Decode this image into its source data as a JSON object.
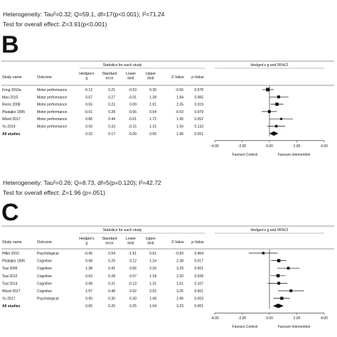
{
  "top_stats": {
    "heterogeneity": "Heterogeneity: Tau²=0.32; Q=59.1, df=17(p<0.001); I²=71.24",
    "overall": "Test for overall effect: Z=3.91(p<0.001)"
  },
  "panel_b": {
    "letter": "B",
    "headers": {
      "study_name": "Study name",
      "outcome": "Outcome",
      "stats_title": "Statistics for each study",
      "g": "Hedges's g",
      "se": "Standard error",
      "lower": "Lower limit",
      "upper": "Upper limit",
      "z": "Z-Value",
      "p": "p-Value",
      "plot_title": "Hedges's g and 95%CI"
    },
    "axis_ticks": [
      "-4.00",
      "-2.00",
      "0.00",
      "2.00",
      "4.00"
    ],
    "favours_left": "Favours Control",
    "favours_right": "Favours Intervention",
    "heterogeneity": "Heterogeneity: Tau²=0.26; Q=8.73, df=5(p=0.120); I²=42.72",
    "overall": "Test for overall effect: Z=1.96 (p=.051)"
  },
  "panel_c": {
    "letter": "C",
    "headers": {
      "study_name": "Study name",
      "outcome": "Outcome",
      "stats_title": "Statistics for each study",
      "g": "Hedges's g",
      "se": "Standard error",
      "lower": "Lower limit",
      "upper": "Upper limit",
      "z": "Z-Value",
      "p": "p-Value",
      "plot_title": "Hedges's g and 95%CI"
    },
    "axis_ticks": [
      "-4.00",
      "-2.00",
      "0.00",
      "2.00",
      "4.00"
    ],
    "favours_left": "Favours Control",
    "favours_right": "Favours Intervention"
  },
  "chart_data": [
    {
      "type": "forest",
      "title": "Hedges's g and 95%CI",
      "xlim": [
        -4,
        4
      ],
      "rows": [
        {
          "study": "Fong 2016a",
          "outcome": "Motor performance",
          "g": "-0.12",
          "se": "0.21",
          "lower": "-0.53",
          "upper": "0.30",
          "z": "-0.56",
          "p": "0.578",
          "gv": -0.12,
          "lv": -0.53,
          "uv": 0.3,
          "weight": 5
        },
        {
          "study": "Mao 2015",
          "outcome": "Motor performance",
          "g": "0.67",
          "se": "0.27",
          "lower": "-0.01",
          "upper": "1.39",
          "z": "1.84",
          "p": "0.065",
          "gv": 0.67,
          "lv": -0.01,
          "uv": 1.39,
          "weight": 4
        },
        {
          "study": "Roms 2008",
          "outcome": "Motor performance",
          "g": "0.55",
          "se": "0.23",
          "lower": "0.09",
          "upper": "1.01",
          "z": "2.35",
          "p": "0.019",
          "gv": 0.55,
          "lv": 0.09,
          "uv": 1.01,
          "weight": 4.5
        },
        {
          "study": "Pbatajko 1995",
          "outcome": "Motor performance",
          "g": "-0.01",
          "se": "0.28",
          "lower": "-0.56",
          "upper": "0.54",
          "z": "-0.03",
          "p": "0.979",
          "gv": -0.01,
          "lv": -0.56,
          "uv": 0.54,
          "weight": 4
        },
        {
          "study": "Wood 2017",
          "outcome": "Motor performance",
          "g": "0.86",
          "se": "0.44",
          "lower": "-0.01",
          "upper": "1.72",
          "z": "1.95",
          "p": "0.052",
          "gv": 0.86,
          "lv": -0.01,
          "uv": 1.72,
          "weight": 3
        },
        {
          "study": "Yu 2019",
          "outcome": "Motor performance",
          "g": "0.50",
          "se": "0.33",
          "lower": "-0.15",
          "upper": "1.15",
          "z": "1.50",
          "p": "0.133",
          "gv": 0.5,
          "lv": -0.15,
          "uv": 1.15,
          "weight": 3.5
        }
      ],
      "summary": {
        "study": "All studies",
        "g": "0.32",
        "se": "0.17",
        "lower": "-0.00",
        "upper": "0.65",
        "z": "1.96",
        "p": "0.051",
        "gv": 0.32,
        "lv": 0.0,
        "uv": 0.65
      },
      "xlabel_left": "Favours Control",
      "xlabel_right": "Favours Intervention"
    },
    {
      "type": "forest",
      "title": "Hedges's g and 95%CI",
      "xlim": [
        -4,
        4
      ],
      "rows": [
        {
          "study": "Hiller 2010",
          "outcome": "Psychological",
          "g": "-0.45",
          "se": "0.54",
          "lower": "-1.51",
          "upper": "0.61",
          "z": "-0.83",
          "p": "0.404",
          "gv": -0.45,
          "lv": -1.51,
          "uv": 0.61,
          "weight": 3.5
        },
        {
          "study": "Pbatajko 1995",
          "outcome": "Cognitive",
          "g": "0.68",
          "se": "0.29",
          "lower": "0.12",
          "upper": "1.24",
          "z": "2.38",
          "p": "0.017",
          "gv": 0.68,
          "lv": 0.12,
          "uv": 1.24,
          "weight": 4.5
        },
        {
          "study": "Tsai 2009",
          "outcome": "Cognitive",
          "g": "1.38",
          "se": "0.42",
          "lower": "0.56",
          "upper": "2.20",
          "z": "3.29",
          "p": "0.001",
          "gv": 1.38,
          "lv": 0.56,
          "uv": 2.2,
          "weight": 3.8
        },
        {
          "study": "Tsai 2012",
          "outcome": "Cognitive",
          "g": "0.63",
          "se": "0.28",
          "lower": "0.07",
          "upper": "1.18",
          "z": "2.20",
          "p": "0.028",
          "gv": 0.63,
          "lv": 0.07,
          "uv": 1.18,
          "weight": 4.5
        },
        {
          "study": "Tsai 2014",
          "outcome": "Cognitive",
          "g": "0.68",
          "se": "0.31",
          "lower": "-0.13",
          "upper": "1.31",
          "z": "1.61",
          "p": "0.107",
          "gv": 0.68,
          "lv": -0.13,
          "uv": 1.31,
          "weight": 4
        },
        {
          "study": "Wood 2017",
          "outcome": "Cognitive",
          "g": "1.57",
          "se": "0.48",
          "lower": "0.62",
          "upper": "2.52",
          "z": "3.25",
          "p": "0.001",
          "gv": 1.57,
          "lv": 0.62,
          "uv": 2.52,
          "weight": 3.8
        },
        {
          "study": "Yu 2017",
          "outcome": "Psychological",
          "g": "0.90",
          "se": "0.30",
          "lower": "0.30",
          "upper": "1.49",
          "z": "2.96",
          "p": "0.003",
          "gv": 0.9,
          "lv": 0.3,
          "uv": 1.49,
          "weight": 4.3
        }
      ],
      "summary": {
        "study": "All studies",
        "g": "0.65",
        "se": "0.20",
        "lower": "0.25",
        "upper": "1.04",
        "z": "3.23",
        "p": "0.001",
        "gv": 0.65,
        "lv": 0.25,
        "uv": 1.04
      },
      "xlabel_left": "Favours Control",
      "xlabel_right": "Favours Intervention"
    }
  ]
}
